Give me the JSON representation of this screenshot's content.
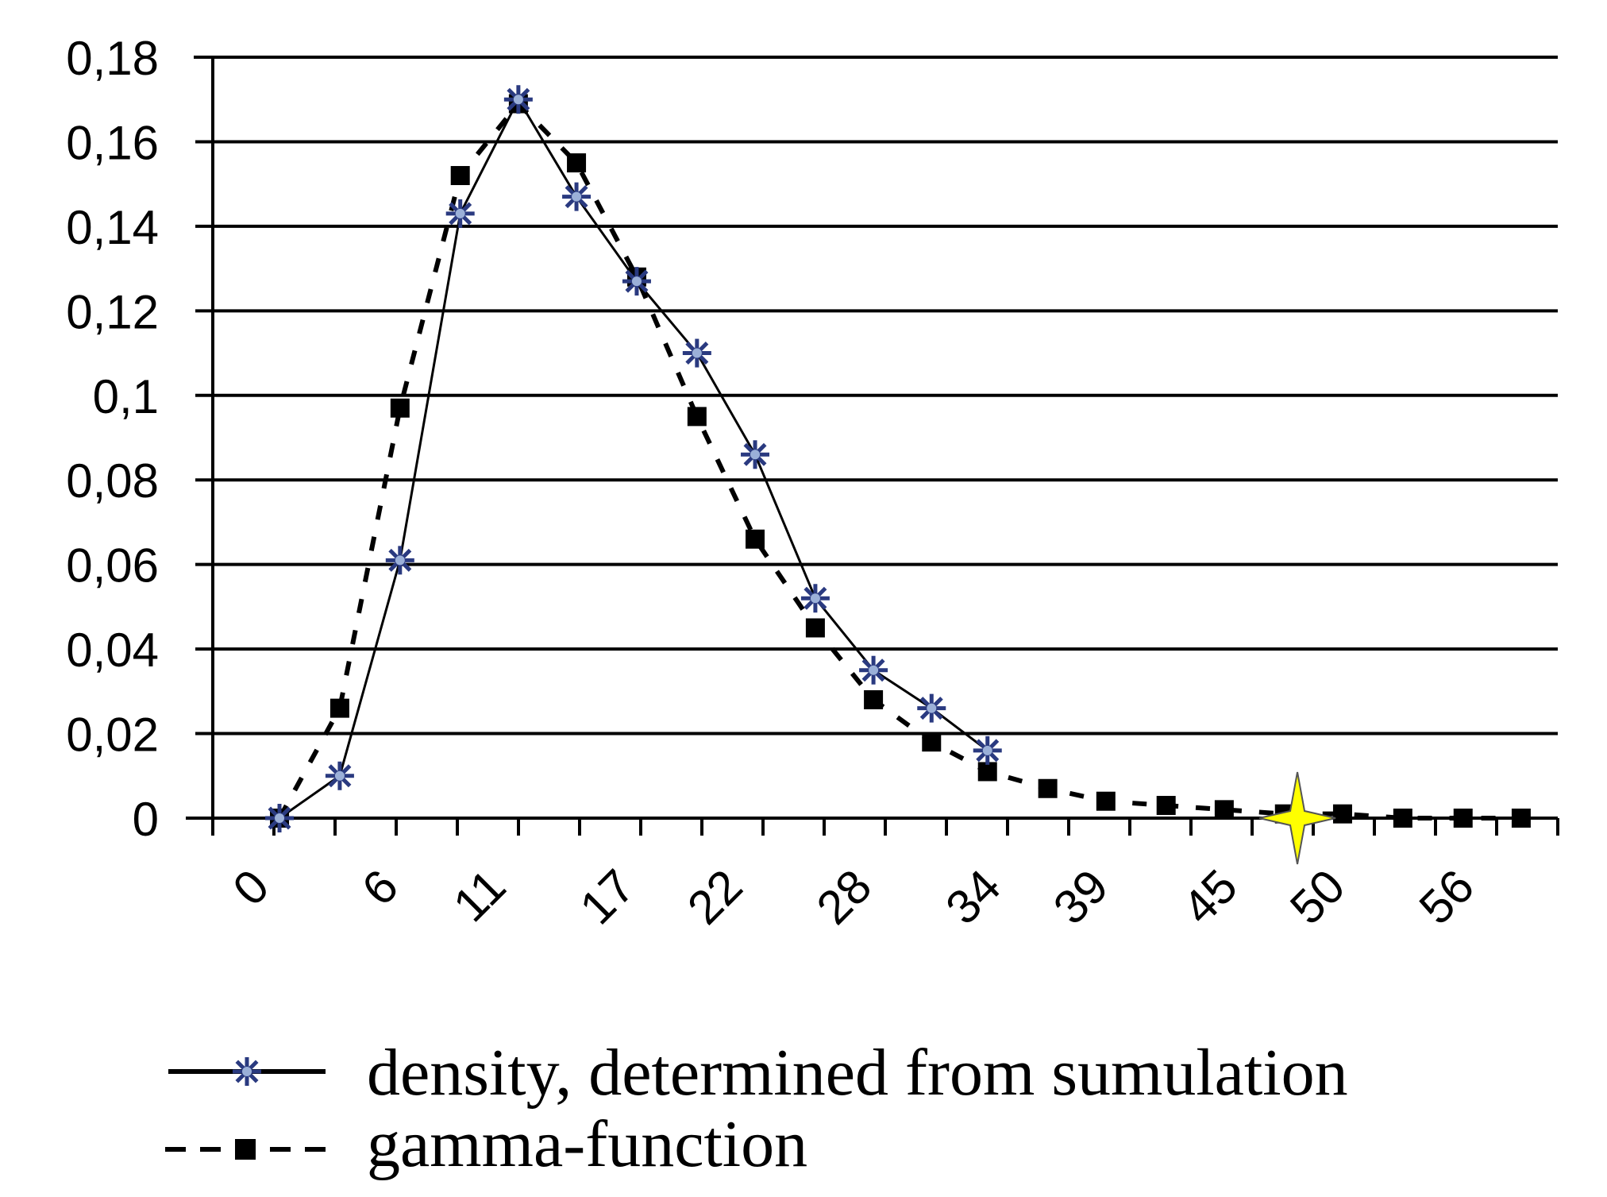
{
  "chart_data": {
    "type": "line",
    "title": "",
    "xlabel": "",
    "ylabel": "",
    "ylim": [
      0,
      0.18
    ],
    "y_ticks": [
      "0",
      "0,02",
      "0,04",
      "0,06",
      "0,08",
      "0,1",
      "0,12",
      "0,14",
      "0,16",
      "0,18"
    ],
    "y_tick_values": [
      0,
      0.02,
      0.04,
      0.06,
      0.08,
      0.1,
      0.12,
      0.14,
      0.16,
      0.18
    ],
    "x_ticks": [
      "0",
      "6",
      "11",
      "17",
      "22",
      "28",
      "34",
      "39",
      "45",
      "50",
      "56"
    ],
    "x_tick_values": [
      0,
      6,
      11,
      17,
      22,
      28,
      34,
      39,
      45,
      50,
      56
    ],
    "xlim": [
      -2,
      60.5
    ],
    "grid": "horizontal",
    "legend_position": "bottom",
    "series": [
      {
        "name": "density, determined from sumulation",
        "style": "solid",
        "marker": "star",
        "x": [
          1.1,
          3.9,
          6.7,
          9.5,
          12.2,
          14.9,
          17.7,
          20.5,
          23.2,
          26.0,
          28.7,
          31.4,
          34.0
        ],
        "y": [
          0.0,
          0.01,
          0.061,
          0.143,
          0.17,
          0.147,
          0.127,
          0.11,
          0.086,
          0.052,
          0.035,
          0.026,
          0.016
        ]
      },
      {
        "name": "gamma-function",
        "style": "dashed",
        "marker": "square",
        "x": [
          1.1,
          3.9,
          6.7,
          9.5,
          12.2,
          14.9,
          17.7,
          20.5,
          23.2,
          26.0,
          28.7,
          31.4,
          34.0,
          36.8,
          39.5,
          42.3,
          45.0,
          47.8,
          50.5,
          53.3,
          56.1,
          58.8
        ],
        "y": [
          0.0,
          0.026,
          0.097,
          0.152,
          0.169,
          0.155,
          0.128,
          0.095,
          0.066,
          0.045,
          0.028,
          0.018,
          0.011,
          0.007,
          0.004,
          0.003,
          0.002,
          0.001,
          0.001,
          0.0,
          0.0,
          0.0
        ]
      }
    ],
    "highlight_point": {
      "x": 48.4,
      "y": 0.0
    }
  }
}
